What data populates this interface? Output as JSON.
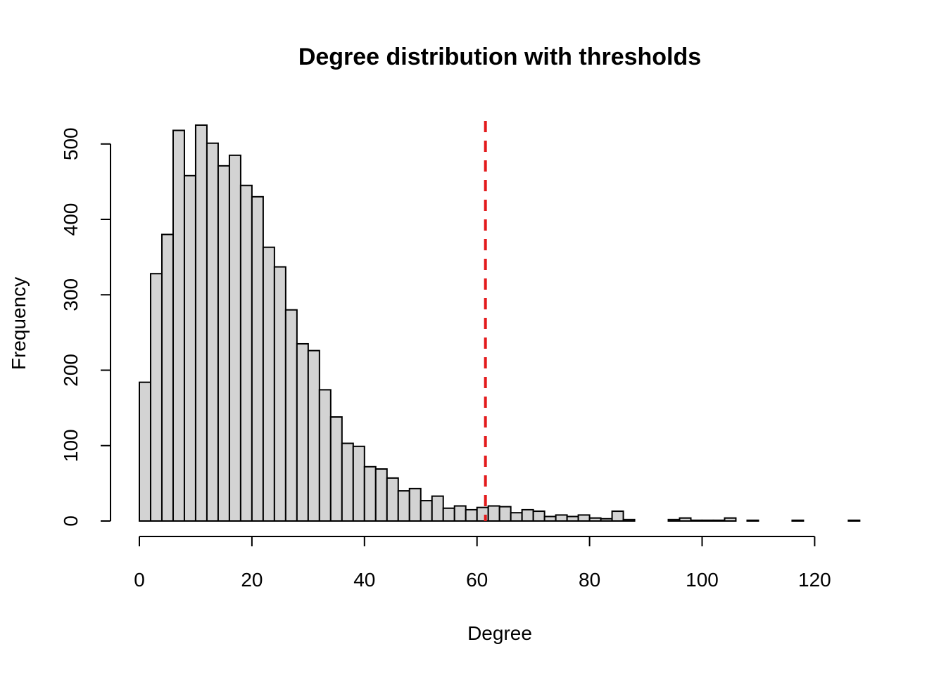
{
  "chart_data": {
    "type": "bar",
    "subtype": "histogram",
    "title": "Degree distribution with thresholds",
    "xlabel": "Degree",
    "ylabel": "Frequency",
    "bin_width": 2,
    "bin_start": 0,
    "bin_counts": [
      184,
      328,
      380,
      518,
      458,
      525,
      501,
      471,
      485,
      445,
      430,
      363,
      337,
      280,
      235,
      226,
      174,
      138,
      103,
      99,
      72,
      69,
      57,
      40,
      43,
      27,
      33,
      17,
      20,
      15,
      18,
      20,
      19,
      11,
      15,
      13,
      6,
      8,
      6,
      8,
      4,
      3,
      13,
      2,
      0,
      0,
      0,
      2,
      4,
      1,
      1,
      1,
      4,
      0,
      1,
      0,
      0,
      0,
      1,
      0,
      0,
      0,
      0,
      1
    ],
    "xlim": [
      0,
      128
    ],
    "ylim": [
      0,
      525
    ],
    "x_ticks": [
      0,
      20,
      40,
      60,
      80,
      100,
      120
    ],
    "y_ticks": [
      0,
      100,
      200,
      300,
      400,
      500
    ],
    "threshold_lines": [
      {
        "x": 61.5,
        "style": "dashed",
        "color": "#e31a1c"
      }
    ],
    "bar_fill": "#d3d3d3",
    "bar_stroke": "#000000",
    "grid": false,
    "legend": "none"
  }
}
